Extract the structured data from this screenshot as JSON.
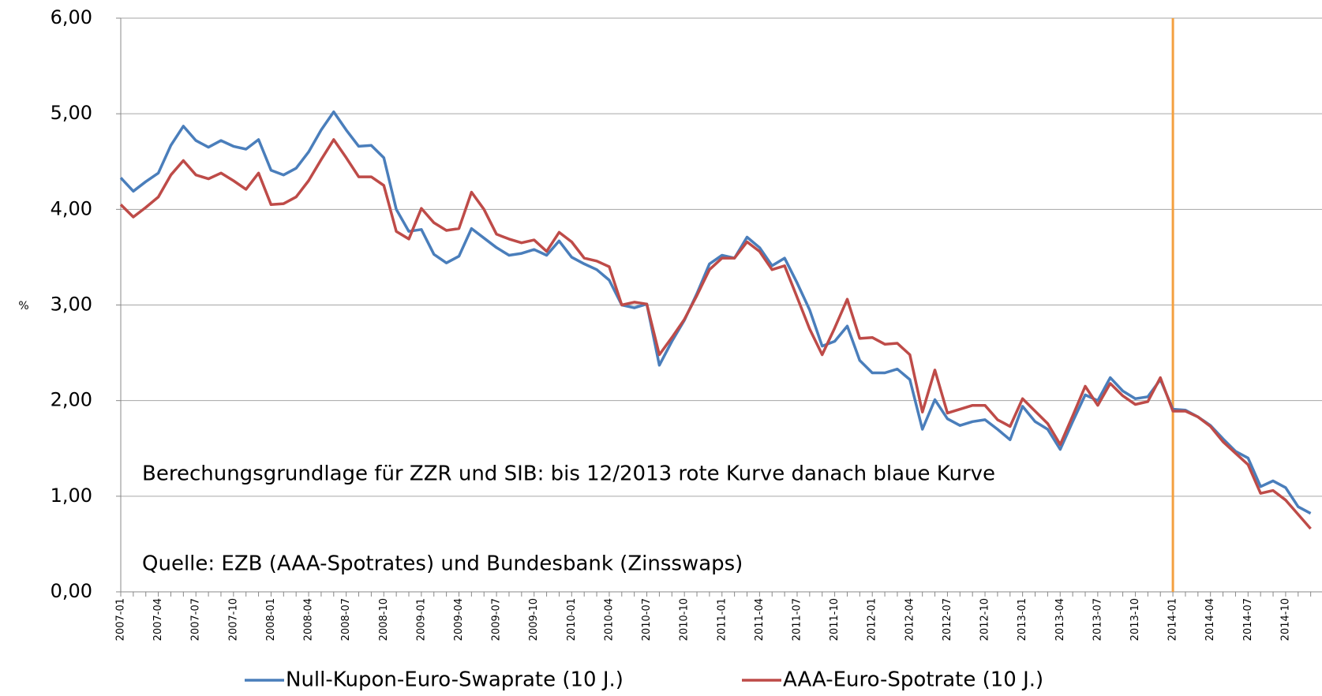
{
  "chart_data": {
    "type": "line",
    "y_label": "%",
    "annotations": [
      "Berechungsgrundlage für ZZR und SIB: bis 12/2013 rote Kurve danach blaue Kurve",
      "Quelle: EZB (AAA-Spotrates) und Bundesbank (Zinsswaps)"
    ],
    "vline": {
      "at": "2014-01",
      "color": "#f4a040"
    },
    "categories": [
      "2007-01",
      null,
      null,
      "2007-04",
      null,
      null,
      "2007-07",
      null,
      null,
      "2007-10",
      null,
      null,
      "2008-01",
      null,
      null,
      "2008-04",
      null,
      null,
      "2008-07",
      null,
      null,
      "2008-10",
      null,
      null,
      "2009-01",
      null,
      null,
      "2009-04",
      null,
      null,
      "2009-07",
      null,
      null,
      "2009-10",
      null,
      null,
      "2010-01",
      null,
      null,
      "2010-04",
      null,
      null,
      "2010-07",
      null,
      null,
      "2010-10",
      null,
      null,
      "2011-01",
      null,
      null,
      "2011-04",
      null,
      null,
      "2011-07",
      null,
      null,
      "2011-10",
      null,
      null,
      "2012-01",
      null,
      null,
      "2012-04",
      null,
      null,
      "2012-07",
      null,
      null,
      "2012-10",
      null,
      null,
      "2013-01",
      null,
      null,
      "2013-04",
      null,
      null,
      "2013-07",
      null,
      null,
      "2013-10",
      null,
      null,
      "2014-01",
      null,
      null,
      "2014-04",
      null,
      null,
      "2014-07",
      null,
      null,
      "2014-10",
      null,
      null
    ],
    "series": [
      {
        "name": "Null-Kupon-Euro-Swaprate (10 J.)",
        "color": "#4a7ebb",
        "values": [
          4.33,
          4.19,
          4.29,
          4.38,
          4.67,
          4.87,
          4.72,
          4.65,
          4.72,
          4.66,
          4.63,
          4.73,
          4.41,
          4.36,
          4.43,
          4.6,
          4.83,
          5.02,
          4.83,
          4.66,
          4.67,
          4.54,
          4.0,
          3.77,
          3.79,
          3.53,
          3.44,
          3.51,
          3.8,
          3.7,
          3.6,
          3.52,
          3.54,
          3.58,
          3.52,
          3.67,
          3.5,
          3.43,
          3.37,
          3.26,
          3.0,
          2.97,
          3.01,
          2.37,
          2.62,
          2.84,
          3.12,
          3.43,
          3.52,
          3.49,
          3.71,
          3.6,
          3.41,
          3.49,
          3.23,
          2.95,
          2.57,
          2.62,
          2.78,
          2.42,
          2.29,
          2.29,
          2.33,
          2.22,
          1.7,
          2.01,
          1.81,
          1.74,
          1.78,
          1.8,
          1.7,
          1.59,
          1.94,
          1.78,
          1.7,
          1.49,
          1.78,
          2.06,
          2.0,
          2.24,
          2.1,
          2.02,
          2.04,
          2.22,
          1.91,
          1.9,
          1.83,
          1.74,
          1.6,
          1.47,
          1.4,
          1.1,
          1.16,
          1.09,
          0.89,
          0.82
        ]
      },
      {
        "name": "AAA-Euro-Spotrate (10 J.)",
        "color": "#be4b48",
        "values": [
          4.05,
          3.92,
          4.02,
          4.13,
          4.36,
          4.51,
          4.36,
          4.32,
          4.38,
          4.3,
          4.21,
          4.38,
          4.05,
          4.06,
          4.13,
          4.3,
          4.52,
          4.73,
          4.54,
          4.34,
          4.34,
          4.25,
          3.77,
          3.69,
          4.01,
          3.86,
          3.78,
          3.8,
          4.18,
          4.0,
          3.74,
          3.69,
          3.65,
          3.68,
          3.56,
          3.76,
          3.66,
          3.49,
          3.46,
          3.4,
          3.0,
          3.03,
          3.01,
          2.48,
          2.66,
          2.85,
          3.1,
          3.37,
          3.49,
          3.49,
          3.66,
          3.56,
          3.37,
          3.41,
          3.08,
          2.75,
          2.48,
          2.76,
          3.06,
          2.65,
          2.66,
          2.59,
          2.6,
          2.48,
          1.88,
          2.32,
          1.87,
          1.91,
          1.95,
          1.95,
          1.8,
          1.73,
          2.02,
          1.89,
          1.76,
          1.54,
          1.84,
          2.15,
          1.95,
          2.18,
          2.05,
          1.96,
          1.99,
          2.24,
          1.89,
          1.89,
          1.83,
          1.73,
          1.57,
          1.45,
          1.33,
          1.03,
          1.06,
          0.96,
          0.81,
          0.66
        ]
      }
    ],
    "ylim": [
      0,
      6
    ],
    "yticks": [
      {
        "value": 0,
        "label": "0,00"
      },
      {
        "value": 1,
        "label": "1,00"
      },
      {
        "value": 2,
        "label": "2,00"
      },
      {
        "value": 3,
        "label": "3,00"
      },
      {
        "value": 4,
        "label": "4,00"
      },
      {
        "value": 5,
        "label": "5,00"
      },
      {
        "value": 6,
        "label": "6,00"
      }
    ],
    "grid": true
  }
}
